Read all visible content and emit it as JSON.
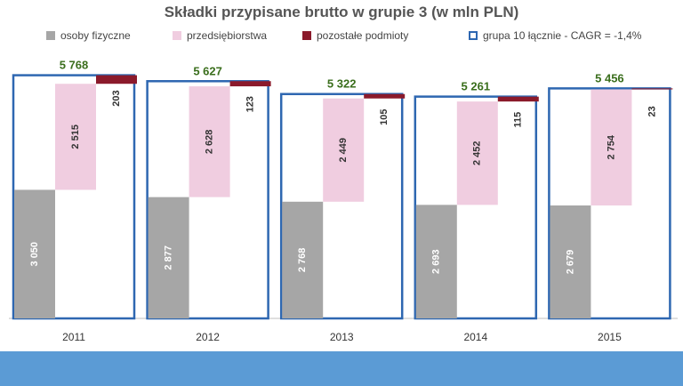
{
  "chart_data": {
    "type": "bar",
    "title": "Składki przypisane brutto w grupie 3 (w mln PLN)",
    "categories": [
      "2011",
      "2012",
      "2013",
      "2014",
      "2015"
    ],
    "series": [
      {
        "name": "osoby fizyczne",
        "color": "#a6a6a6",
        "values": [
          3050,
          2877,
          2768,
          2693,
          2679
        ],
        "labels": [
          "3 050",
          "2 877",
          "2 768",
          "2 693",
          "2 679"
        ]
      },
      {
        "name": "przedsiębiorstwa",
        "color": "#f0cde0",
        "values": [
          2515,
          2628,
          2449,
          2452,
          2754
        ],
        "labels": [
          "2 515",
          "2 628",
          "2 449",
          "2 452",
          "2 754"
        ]
      },
      {
        "name": "pozostałe podmioty",
        "color": "#8b1a2b",
        "values": [
          203,
          123,
          105,
          115,
          23
        ],
        "labels": [
          "203",
          "123",
          "105",
          "115",
          "23"
        ]
      },
      {
        "name": "grupa 10 łącznie - CAGR = -1,4%",
        "color": "#2e67b1",
        "values": [
          5768,
          5627,
          5322,
          5261,
          5456
        ],
        "labels": [
          "5 768",
          "5 627",
          "5 322",
          "5 261",
          "5 456"
        ]
      }
    ],
    "total_label_color": "#3a6e1c",
    "ylim": [
      0,
      6200
    ],
    "xlabel": "",
    "ylabel": "",
    "legend_position": "top"
  }
}
